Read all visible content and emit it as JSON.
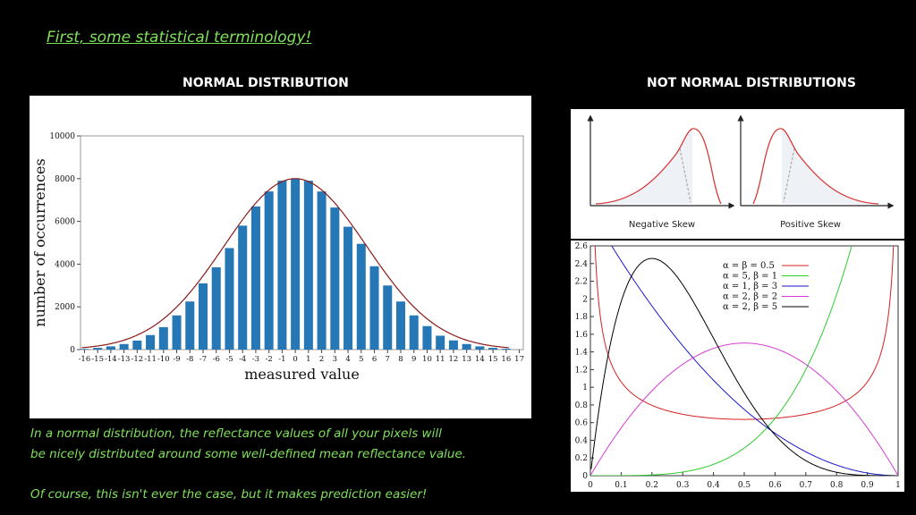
{
  "title": "First, some statistical terminology!",
  "headings": {
    "normal": "NORMAL DISTRIBUTION",
    "not_normal": "NOT NORMAL DISTRIBUTIONS"
  },
  "captions": {
    "line1": "In a normal distribution, the reflectance values of all your pixels will",
    "line2": "be nicely distributed around some well-defined mean reflectance value.",
    "line3": "Of course, this isn't ever the case, but it makes prediction easier!"
  },
  "skew_labels": {
    "negative": "Negative Skew",
    "positive": "Positive Skew"
  },
  "colors": {
    "bar": "#2677b5",
    "curve": "#8b1a1a",
    "caption": "#7fe05a"
  },
  "chart_data": [
    {
      "type": "bar",
      "xlabel": "measured value",
      "ylabel": "number of occurrences",
      "ylim": [
        0,
        10000
      ],
      "yticks": [
        0,
        2000,
        4000,
        6000,
        8000,
        10000
      ],
      "xticks": [
        -16,
        -15,
        -14,
        -13,
        -12,
        -11,
        -10,
        -9,
        -8,
        -7,
        -6,
        -5,
        -4,
        -3,
        -2,
        -1,
        0,
        1,
        2,
        3,
        4,
        5,
        6,
        7,
        8,
        9,
        10,
        11,
        12,
        13,
        14,
        15,
        16,
        17
      ],
      "x": [
        -16,
        -15,
        -14,
        -13,
        -12,
        -11,
        -10,
        -9,
        -8,
        -7,
        -6,
        -5,
        -4,
        -3,
        -2,
        -1,
        0,
        1,
        2,
        3,
        4,
        5,
        6,
        7,
        8,
        9,
        10,
        11,
        12,
        13,
        14,
        15,
        16
      ],
      "values": [
        30,
        80,
        150,
        260,
        420,
        680,
        1050,
        1600,
        2250,
        3100,
        3850,
        4750,
        5800,
        6700,
        7400,
        7900,
        8000,
        7900,
        7400,
        6650,
        5750,
        4950,
        3900,
        3000,
        2250,
        1600,
        1100,
        650,
        430,
        260,
        150,
        80,
        40
      ],
      "curve": "normal fit",
      "grid": false
    },
    {
      "type": "line",
      "series": [
        {
          "name": "Negative Skew"
        },
        {
          "name": "Positive Skew"
        }
      ],
      "grid": false
    },
    {
      "type": "line",
      "xlim": [
        0,
        1
      ],
      "ylim": [
        0,
        2.6
      ],
      "xticks": [
        "0",
        "0.1",
        "0.2",
        "0.3",
        "0.4",
        "0.5",
        "0.6",
        "0.7",
        "0.8",
        "0.9",
        "1"
      ],
      "yticks": [
        "0",
        "0.2",
        "0.4",
        "0.6",
        "0.8",
        "1",
        "1.2",
        "1.4",
        "1.6",
        "1.8",
        "2",
        "2.2",
        "2.4",
        "2.6"
      ],
      "legend": "top-right",
      "series": [
        {
          "name": "α = β = 0.5",
          "alpha": 0.5,
          "beta": 0.5,
          "color": "#d62020"
        },
        {
          "name": "α = 5, β = 1",
          "alpha": 5,
          "beta": 1,
          "color": "#2ecc2e"
        },
        {
          "name": "α = 1, β = 3",
          "alpha": 1,
          "beta": 3,
          "color": "#1a1acc"
        },
        {
          "name": "α = 2, β = 2",
          "alpha": 2,
          "beta": 2,
          "color": "#d63ad6"
        },
        {
          "name": "α = 2, β = 5",
          "alpha": 2,
          "beta": 5,
          "color": "#000000"
        }
      ]
    }
  ]
}
